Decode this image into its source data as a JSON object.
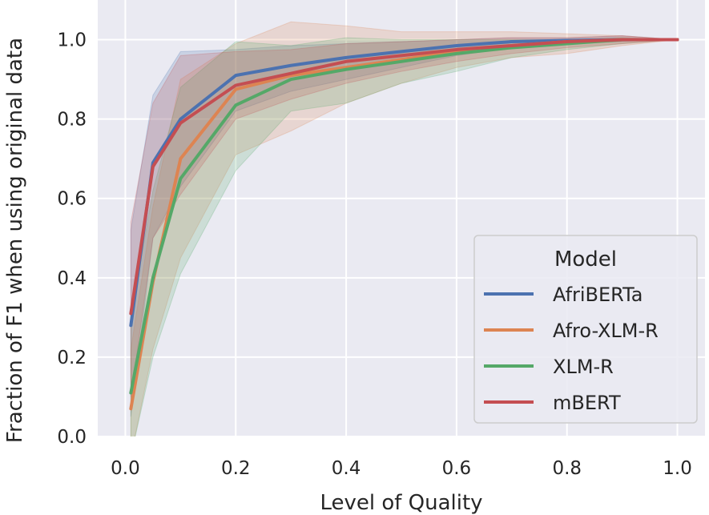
{
  "chart_data": {
    "type": "line",
    "title": "",
    "xlabel": "Level of Quality",
    "ylabel": "Fraction of F1 when using original data",
    "xlim": [
      -0.05,
      1.05
    ],
    "ylim": [
      0.0,
      1.1
    ],
    "xticks": [
      0.0,
      0.2,
      0.4,
      0.6,
      0.8,
      1.0
    ],
    "xtick_labels": [
      "0.0",
      "0.2",
      "0.4",
      "0.6",
      "0.8",
      "1.0"
    ],
    "yticks": [
      0.0,
      0.2,
      0.4,
      0.6,
      0.8,
      1.0
    ],
    "ytick_labels": [
      "0.0",
      "0.2",
      "0.4",
      "0.6",
      "0.8",
      "1.0"
    ],
    "grid": true,
    "legend": {
      "title": "Model",
      "position": "lower-right"
    },
    "x": [
      0.01,
      0.05,
      0.1,
      0.2,
      0.3,
      0.4,
      0.5,
      0.6,
      0.7,
      0.8,
      0.9,
      1.0
    ],
    "series": [
      {
        "name": "AfriBERTa",
        "color": "#4c72b0",
        "values": [
          0.28,
          0.69,
          0.8,
          0.91,
          0.935,
          0.955,
          0.97,
          0.985,
          0.995,
          0.998,
          1.0,
          1.0
        ],
        "lower": [
          0.05,
          0.5,
          0.63,
          0.82,
          0.87,
          0.9,
          0.93,
          0.96,
          0.98,
          0.99,
          0.995,
          1.0
        ],
        "upper": [
          0.52,
          0.86,
          0.97,
          0.975,
          0.985,
          0.99,
          0.995,
          1.0,
          1.005,
          1.005,
          1.01,
          1.0
        ]
      },
      {
        "name": "Afro-XLM-R",
        "color": "#dd8452",
        "values": [
          0.07,
          0.39,
          0.7,
          0.875,
          0.91,
          0.93,
          0.95,
          0.97,
          0.985,
          0.995,
          1.0,
          1.0
        ],
        "lower": [
          -0.05,
          0.22,
          0.45,
          0.71,
          0.77,
          0.84,
          0.89,
          0.93,
          0.955,
          0.965,
          0.985,
          1.0
        ],
        "upper": [
          0.22,
          0.58,
          0.9,
          0.99,
          1.045,
          1.035,
          1.02,
          1.02,
          1.02,
          1.015,
          1.01,
          1.0
        ]
      },
      {
        "name": "XLM-R",
        "color": "#55a868",
        "values": [
          0.11,
          0.4,
          0.65,
          0.835,
          0.9,
          0.925,
          0.945,
          0.965,
          0.98,
          0.99,
          1.0,
          1.0
        ],
        "lower": [
          -0.05,
          0.2,
          0.41,
          0.67,
          0.82,
          0.84,
          0.89,
          0.92,
          0.955,
          0.975,
          0.99,
          1.0
        ],
        "upper": [
          0.3,
          0.62,
          0.88,
          0.995,
          0.985,
          1.005,
          1.0,
          1.0,
          1.0,
          1.0,
          1.005,
          1.0
        ]
      },
      {
        "name": "mBERT",
        "color": "#c44e52",
        "values": [
          0.31,
          0.68,
          0.79,
          0.885,
          0.915,
          0.945,
          0.96,
          0.975,
          0.985,
          0.995,
          1.0,
          1.0
        ],
        "lower": [
          0.1,
          0.5,
          0.61,
          0.8,
          0.85,
          0.89,
          0.92,
          0.945,
          0.965,
          0.98,
          0.99,
          1.0
        ],
        "upper": [
          0.54,
          0.84,
          0.96,
          0.97,
          0.975,
          0.99,
          0.995,
          1.0,
          1.005,
          1.005,
          1.01,
          1.0
        ]
      }
    ]
  }
}
